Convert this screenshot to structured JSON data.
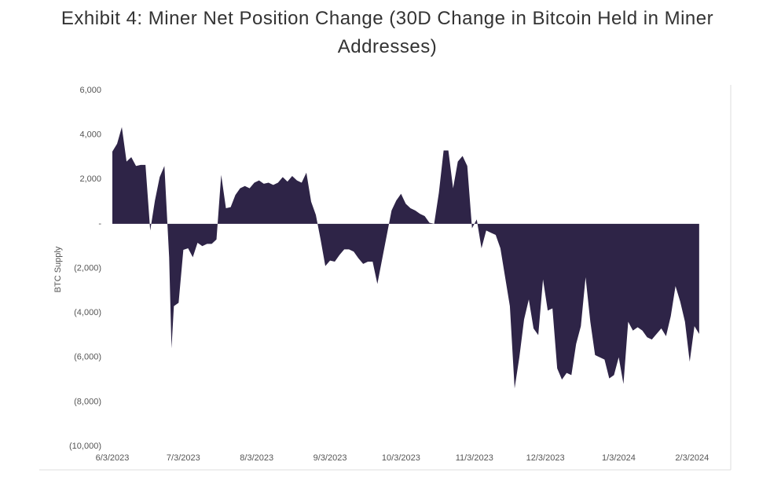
{
  "chart_data": {
    "type": "area",
    "title": "Exhibit 4: Miner Net Position Change (30D Change in Bitcoin Held in Miner Addresses)",
    "y_label": "BTC Supply",
    "color": "#2e2447",
    "grid": false,
    "xlim": [
      "6/3/2023",
      "2/19/2024"
    ],
    "xticks": [
      "6/3/2023",
      "7/3/2023",
      "8/3/2023",
      "9/3/2023",
      "10/3/2023",
      "11/3/2023",
      "12/3/2023",
      "1/3/2024",
      "2/3/2024"
    ],
    "ylim": [
      -10000,
      6000
    ],
    "yticks": [
      {
        "value": 6000,
        "label": "6,000"
      },
      {
        "value": 4000,
        "label": "4,000"
      },
      {
        "value": 2000,
        "label": "2,000"
      },
      {
        "value": 0,
        "label": "-"
      },
      {
        "value": -2000,
        "label": "(2,000)"
      },
      {
        "value": -4000,
        "label": "(4,000)"
      },
      {
        "value": -6000,
        "label": "(6,000)"
      },
      {
        "value": -8000,
        "label": "(8,000)"
      },
      {
        "value": -10000,
        "label": "(10,000)"
      }
    ],
    "x": [
      "6/3/2023",
      "6/5/2023",
      "6/7/2023",
      "6/9/2023",
      "6/11/2023",
      "6/13/2023",
      "6/15/2023",
      "6/17/2023",
      "6/19/2023",
      "6/21/2023",
      "6/23/2023",
      "6/25/2023",
      "6/27/2023",
      "6/28/2023",
      "6/29/2023",
      "7/1/2023",
      "7/3/2023",
      "7/5/2023",
      "7/7/2023",
      "7/9/2023",
      "7/11/2023",
      "7/13/2023",
      "7/15/2023",
      "7/17/2023",
      "7/19/2023",
      "7/21/2023",
      "7/23/2023",
      "7/25/2023",
      "7/27/2023",
      "7/29/2023",
      "7/31/2023",
      "8/2/2023",
      "8/4/2023",
      "8/6/2023",
      "8/8/2023",
      "8/10/2023",
      "8/12/2023",
      "8/14/2023",
      "8/16/2023",
      "8/18/2023",
      "8/20/2023",
      "8/22/2023",
      "8/24/2023",
      "8/26/2023",
      "8/28/2023",
      "8/30/2023",
      "9/1/2023",
      "9/3/2023",
      "9/5/2023",
      "9/7/2023",
      "9/9/2023",
      "9/11/2023",
      "9/13/2023",
      "9/15/2023",
      "9/17/2023",
      "9/19/2023",
      "9/21/2023",
      "9/23/2023",
      "9/25/2023",
      "9/27/2023",
      "9/29/2023",
      "10/1/2023",
      "10/3/2023",
      "10/5/2023",
      "10/7/2023",
      "10/9/2023",
      "10/11/2023",
      "10/13/2023",
      "10/15/2023",
      "10/17/2023",
      "10/19/2023",
      "10/21/2023",
      "10/23/2023",
      "10/25/2023",
      "10/27/2023",
      "10/29/2023",
      "10/31/2023",
      "11/2/2023",
      "11/4/2023",
      "11/6/2023",
      "11/8/2023",
      "11/10/2023",
      "11/12/2023",
      "11/14/2023",
      "11/16/2023",
      "11/18/2023",
      "11/20/2023",
      "11/22/2023",
      "11/24/2023",
      "11/26/2023",
      "11/28/2023",
      "11/30/2023",
      "12/2/2023",
      "12/4/2023",
      "12/6/2023",
      "12/8/2023",
      "12/10/2023",
      "12/12/2023",
      "12/14/2023",
      "12/16/2023",
      "12/18/2023",
      "12/20/2023",
      "12/22/2023",
      "12/24/2023",
      "12/26/2023",
      "12/28/2023",
      "12/30/2023",
      "1/1/2024",
      "1/3/2024",
      "1/5/2024",
      "1/7/2024",
      "1/9/2024",
      "1/11/2024",
      "1/13/2024",
      "1/15/2024",
      "1/17/2024",
      "1/19/2024",
      "1/21/2024",
      "1/23/2024",
      "1/25/2024",
      "1/27/2024",
      "1/29/2024",
      "1/31/2024",
      "2/2/2024",
      "2/4/2024",
      "2/6/2024"
    ],
    "values": [
      3250,
      3600,
      4350,
      2800,
      3000,
      2600,
      2650,
      2650,
      -300,
      1050,
      2100,
      2600,
      -1500,
      -5600,
      -3700,
      -3550,
      -1170,
      -1100,
      -1500,
      -850,
      -1000,
      -900,
      -900,
      -700,
      2200,
      700,
      750,
      1300,
      1600,
      1700,
      1600,
      1850,
      1950,
      1800,
      1850,
      1750,
      1850,
      2100,
      1900,
      2150,
      1950,
      1850,
      2300,
      1000,
      400,
      -700,
      -1900,
      -1650,
      -1700,
      -1400,
      -1150,
      -1150,
      -1250,
      -1550,
      -1800,
      -1700,
      -1700,
      -2700,
      -1600,
      -500,
      600,
      1050,
      1350,
      900,
      700,
      600,
      450,
      350,
      50,
      0,
      1400,
      3300,
      3300,
      1600,
      2800,
      3050,
      2600,
      -200,
      200,
      -1100,
      -300,
      -400,
      -500,
      -1100,
      -2400,
      -3700,
      -7400,
      -6000,
      -4300,
      -3400,
      -4700,
      -5000,
      -2500,
      -3900,
      -3800,
      -6500,
      -7000,
      -6700,
      -6800,
      -5400,
      -4600,
      -2400,
      -4400,
      -5900,
      -6000,
      -6100,
      -6950,
      -6800,
      -6000,
      -7200,
      -4400,
      -4800,
      -4650,
      -4800,
      -5100,
      -5200,
      -4950,
      -4700,
      -5050,
      -4150,
      -2800,
      -3500,
      -4400,
      -6200,
      -4600,
      -4950
    ]
  }
}
